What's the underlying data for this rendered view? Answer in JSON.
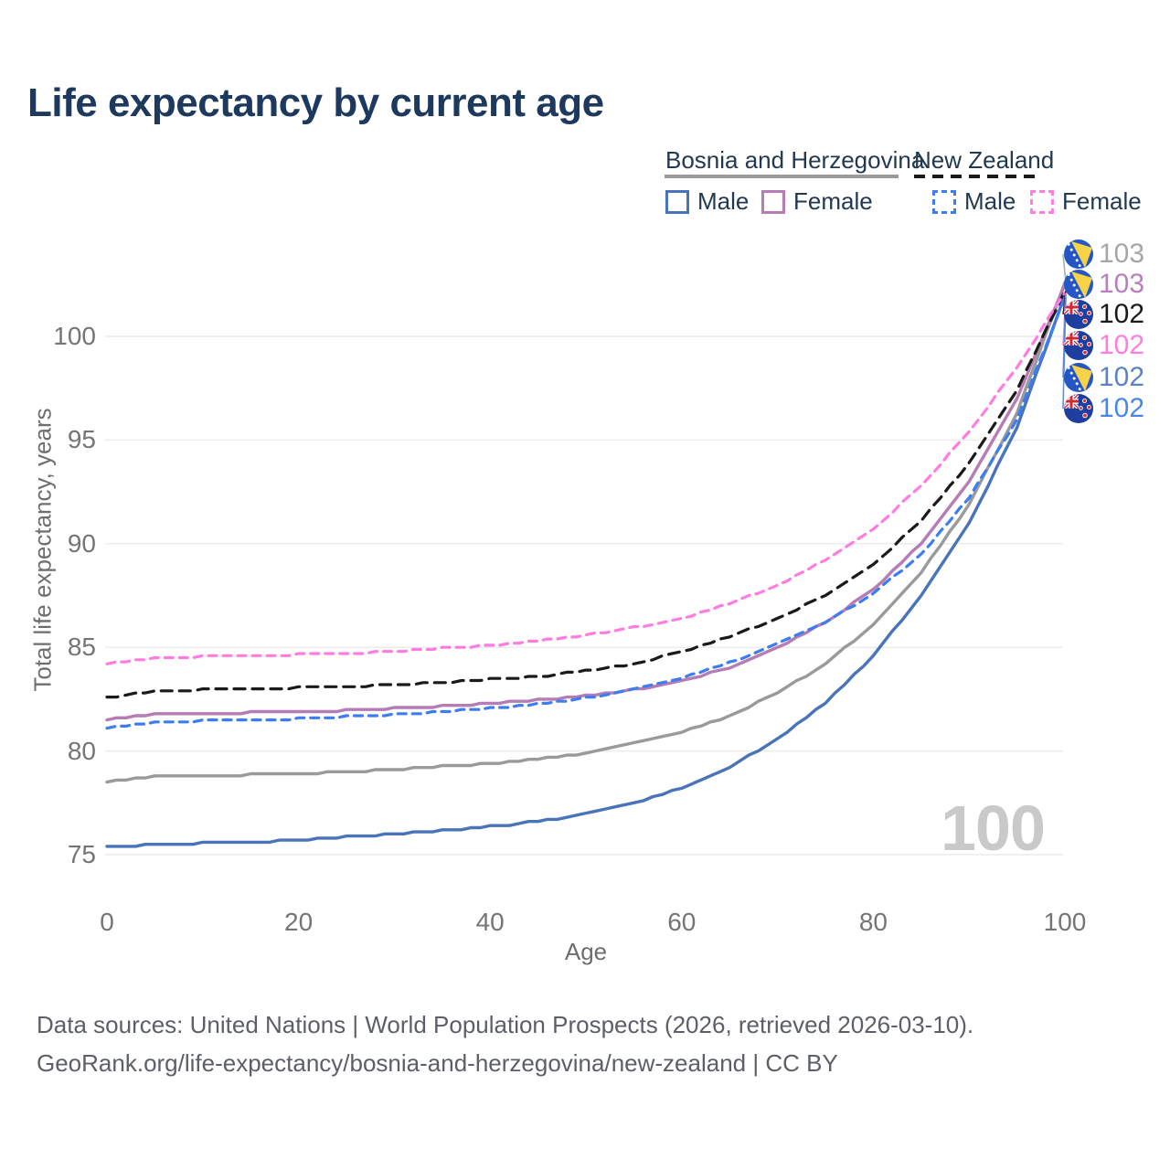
{
  "title": "Life expectancy by current age",
  "watermark": "100",
  "legend": {
    "groups": [
      {
        "label": "Bosnia and Herzegovina",
        "line_style": "solid",
        "line_color": "#9a9a9a",
        "items": [
          {
            "label": "Male",
            "color": "#4a74b9",
            "style": "solid"
          },
          {
            "label": "Female",
            "color": "#b57cb5",
            "style": "solid"
          }
        ]
      },
      {
        "label": "New Zealand",
        "line_style": "dashed",
        "line_color": "#1a1a1a",
        "items": [
          {
            "label": "Male",
            "color": "#3d7df0",
            "style": "dashed"
          },
          {
            "label": "Female",
            "color": "#ff7ce0",
            "style": "dashed"
          }
        ]
      }
    ]
  },
  "chart_data": {
    "type": "line",
    "title": "Life expectancy by current age",
    "xlabel": "Age",
    "ylabel": "Total life expectancy, years",
    "xlim": [
      0,
      100
    ],
    "ylim": [
      73.5,
      104
    ],
    "xticks": [
      0,
      20,
      40,
      60,
      80,
      100
    ],
    "yticks": [
      75,
      80,
      85,
      90,
      95,
      100
    ],
    "grid": "horizontal",
    "legend_position": "top-right",
    "ages": [
      0,
      5,
      10,
      15,
      20,
      25,
      30,
      35,
      40,
      45,
      50,
      55,
      60,
      65,
      70,
      75,
      80,
      85,
      90,
      95,
      100
    ],
    "series": [
      {
        "id": "ba-total",
        "name": "Bosnia and Herzegovina — Total",
        "country": "Bosnia and Herzegovina",
        "sex": "Total",
        "color": "#9a9a9a",
        "dash": null,
        "values": [
          78.5,
          78.8,
          78.8,
          78.85,
          78.9,
          79.0,
          79.1,
          79.25,
          79.4,
          79.6,
          79.9,
          80.35,
          80.9,
          81.7,
          82.8,
          84.2,
          86.1,
          88.6,
          91.9,
          96.3,
          102.6
        ]
      },
      {
        "id": "ba-male",
        "name": "Bosnia and Herzegovina — Male",
        "country": "Bosnia and Herzegovina",
        "sex": "Male",
        "color": "#4a74b9",
        "dash": null,
        "values": [
          75.35,
          75.5,
          75.55,
          75.6,
          75.7,
          75.85,
          76.0,
          76.15,
          76.35,
          76.6,
          76.95,
          77.5,
          78.2,
          79.2,
          80.6,
          82.3,
          84.6,
          87.5,
          91.0,
          95.6,
          102.0
        ]
      },
      {
        "id": "ba-female",
        "name": "Bosnia and Herzegovina — Female",
        "country": "Bosnia and Herzegovina",
        "sex": "Female",
        "color": "#b57cb5",
        "dash": null,
        "values": [
          81.5,
          81.8,
          81.8,
          81.85,
          81.9,
          81.95,
          82.05,
          82.15,
          82.3,
          82.45,
          82.65,
          82.95,
          83.4,
          84.0,
          84.95,
          86.2,
          87.8,
          90.0,
          93.0,
          97.0,
          102.5
        ]
      },
      {
        "id": "nz-total",
        "name": "New Zealand — Total",
        "country": "New Zealand",
        "sex": "Total",
        "color": "#1a1a1a",
        "dash": "12 8",
        "values": [
          82.55,
          82.9,
          82.95,
          83.0,
          83.05,
          83.1,
          83.2,
          83.3,
          83.45,
          83.6,
          83.85,
          84.2,
          84.8,
          85.5,
          86.4,
          87.5,
          89.0,
          91.1,
          93.9,
          97.4,
          102.2
        ]
      },
      {
        "id": "nz-male",
        "name": "New Zealand — Male",
        "country": "New Zealand",
        "sex": "Male",
        "color": "#3d7df0",
        "dash": "9 7",
        "values": [
          81.1,
          81.4,
          81.45,
          81.5,
          81.55,
          81.65,
          81.75,
          81.9,
          82.05,
          82.25,
          82.55,
          82.95,
          83.5,
          84.25,
          85.15,
          86.2,
          87.6,
          89.5,
          92.2,
          96.0,
          101.9
        ]
      },
      {
        "id": "nz-female",
        "name": "New Zealand — Female",
        "country": "New Zealand",
        "sex": "Female",
        "color": "#ff7ce0",
        "dash": "9 7",
        "values": [
          84.2,
          84.5,
          84.55,
          84.6,
          84.65,
          84.7,
          84.8,
          84.95,
          85.1,
          85.3,
          85.6,
          85.95,
          86.4,
          87.1,
          88.0,
          89.2,
          90.7,
          92.8,
          95.4,
          98.5,
          102.1
        ]
      }
    ],
    "end_labels": [
      {
        "value": "103",
        "flag": "ba",
        "color": "#a6a6a6",
        "series": "ba-total"
      },
      {
        "value": "103",
        "flag": "ba",
        "color": "#b87fbe",
        "series": "ba-female"
      },
      {
        "value": "102",
        "flag": "nz",
        "color": "#1a1a1a",
        "series": "nz-total"
      },
      {
        "value": "102",
        "flag": "nz",
        "color": "#ff7ce0",
        "series": "nz-female"
      },
      {
        "value": "102",
        "flag": "ba",
        "color": "#5b82c4",
        "series": "ba-male"
      },
      {
        "value": "102",
        "flag": "nz",
        "color": "#4a86e8",
        "series": "nz-male"
      }
    ]
  },
  "footer": {
    "line1": "Data sources: United Nations | World Population Prospects (2026, retrieved 2026-03-10).",
    "line2": "GeoRank.org/life-expectancy/bosnia-and-herzegovina/new-zealand | CC BY"
  }
}
